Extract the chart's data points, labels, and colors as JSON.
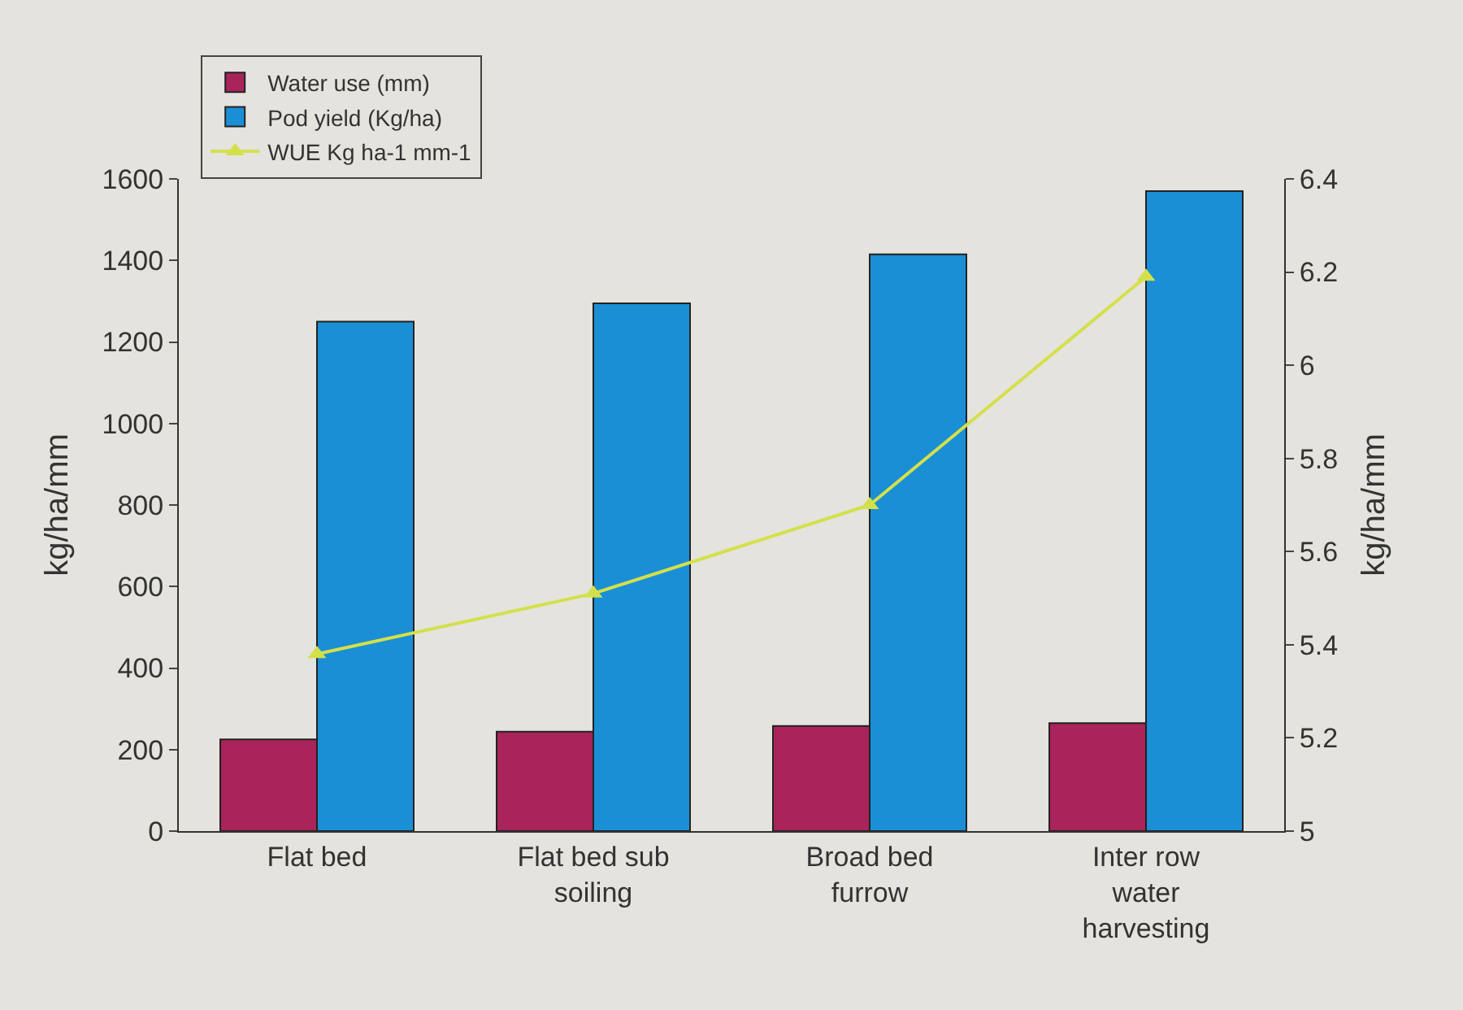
{
  "chart_data": {
    "type": "bar",
    "categories": [
      "Flat bed",
      "Flat bed sub soiling",
      "Broad bed furrow",
      "Inter row water harvesting"
    ],
    "ylabel": "kg/ha/mm",
    "y2label": "kg/ha/mm",
    "ylim": [
      0,
      1600
    ],
    "yticks": [
      0,
      200,
      400,
      600,
      800,
      1000,
      1200,
      1400,
      1600
    ],
    "y2lim": [
      5,
      6.4
    ],
    "y2ticks": [
      5,
      5.2,
      5.4,
      5.6,
      5.8,
      6,
      6.2,
      6.4
    ],
    "grid": false,
    "legend": "top left",
    "marker": "triangle",
    "line_style": "solid",
    "series": [
      {
        "name": "Water use (mm)",
        "color": "#a8245a",
        "values": [
          225,
          244,
          258,
          265
        ]
      },
      {
        "name": "Pod yield (Kg/ha)",
        "color": "#1a8fd6",
        "values": [
          1250,
          1295,
          1415,
          1570
        ]
      },
      {
        "name": "WUE Kg ha-1 mm-1",
        "type": "line",
        "axis": "y2",
        "color": "#d4e04a",
        "values": [
          5.38,
          5.51,
          5.7,
          6.19
        ]
      }
    ]
  }
}
